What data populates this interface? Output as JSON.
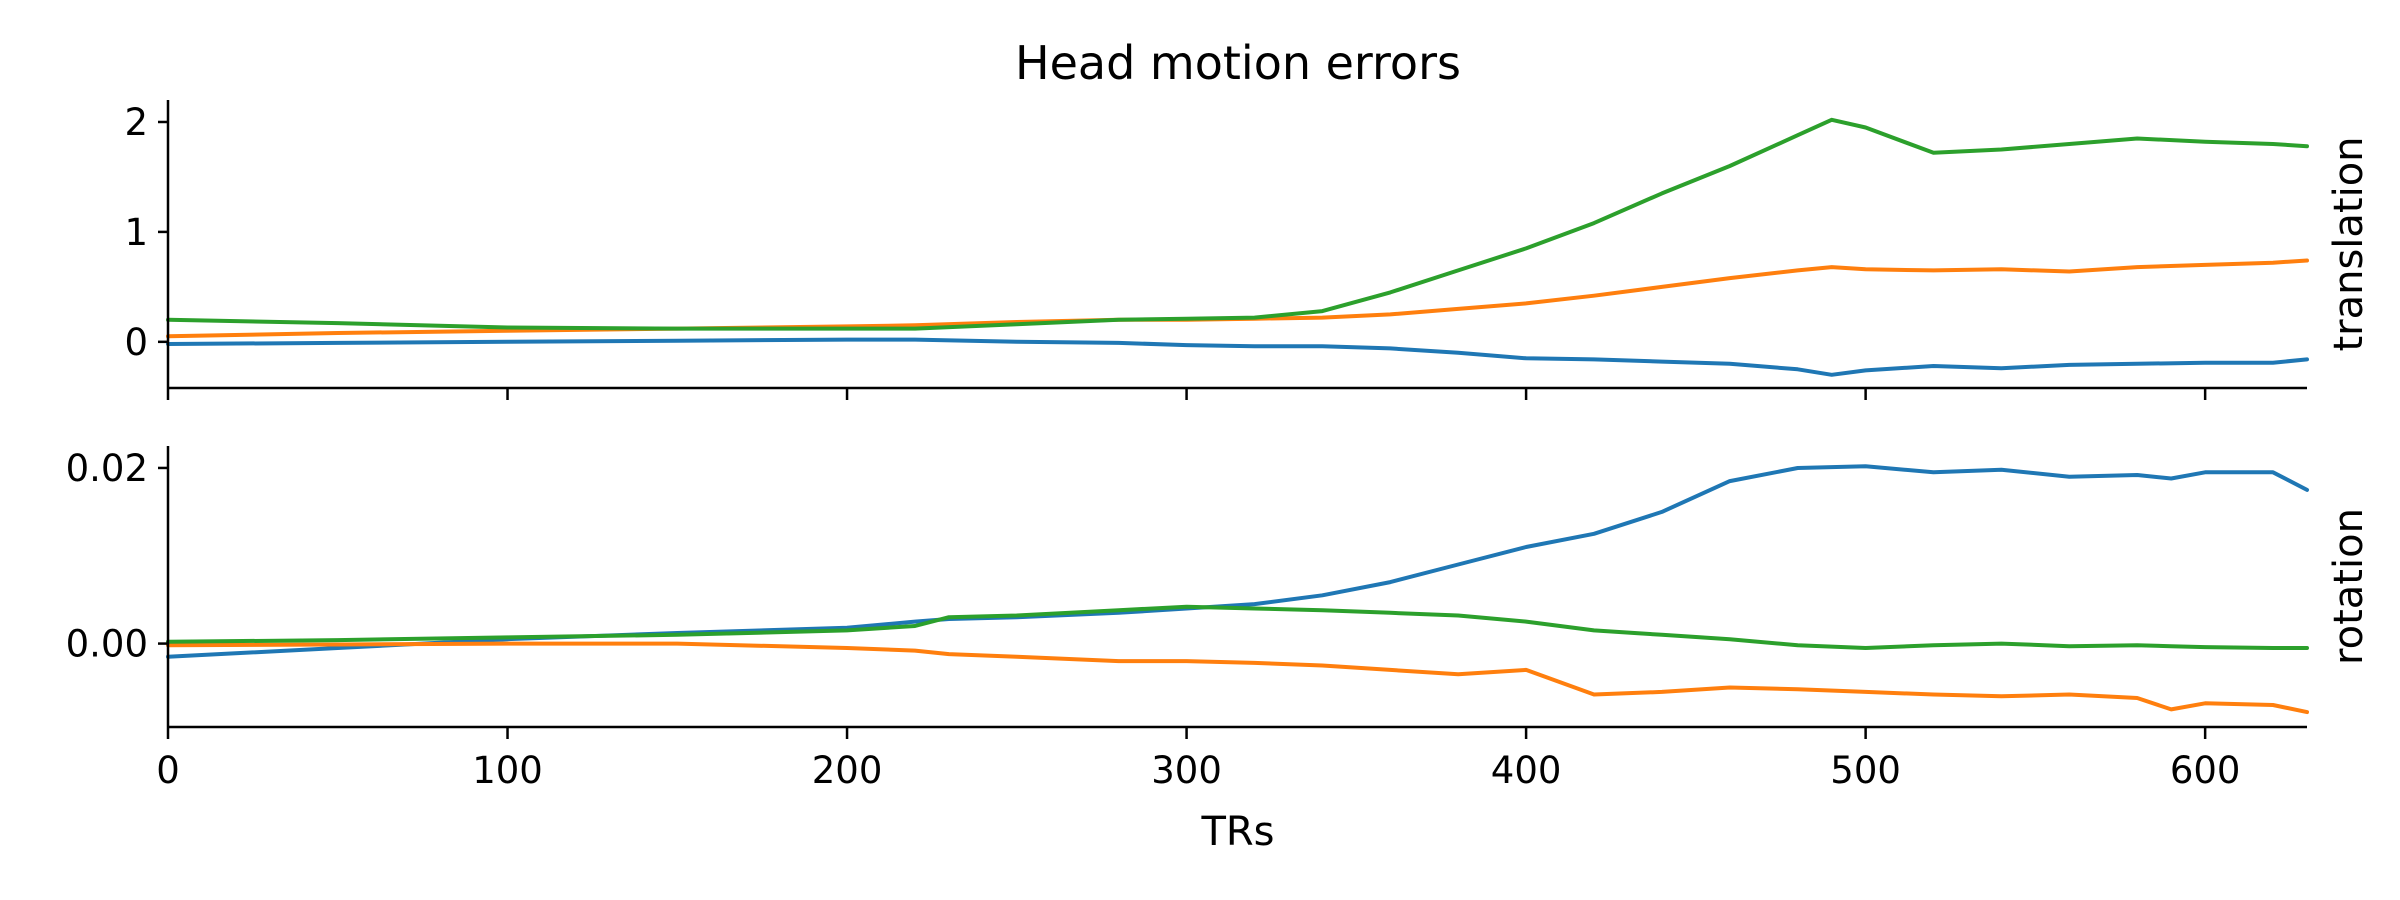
{
  "chart_data": {
    "type": "line",
    "title": "Head motion errors",
    "xlabel": "TRs",
    "xlim": [
      0,
      630
    ],
    "xticks": [
      0,
      100,
      200,
      300,
      400,
      500,
      600
    ],
    "colors": [
      "#1f77b4",
      "#ff7f0e",
      "#2ca02c"
    ],
    "subplots": [
      {
        "ylabel": "translation",
        "ylim": [
          -0.42,
          2.2
        ],
        "yticks": [
          0,
          1,
          2
        ],
        "ytick_labels": [
          "0",
          "1",
          "2"
        ],
        "x": [
          0,
          50,
          100,
          150,
          200,
          220,
          250,
          280,
          300,
          320,
          340,
          360,
          380,
          400,
          420,
          440,
          460,
          480,
          490,
          500,
          520,
          540,
          560,
          580,
          600,
          620,
          630
        ],
        "series": [
          {
            "color": "#1f77b4",
            "values": [
              -0.02,
              -0.01,
              0.0,
              0.01,
              0.02,
              0.02,
              0.0,
              -0.01,
              -0.03,
              -0.04,
              -0.04,
              -0.06,
              -0.1,
              -0.15,
              -0.16,
              -0.18,
              -0.2,
              -0.25,
              -0.3,
              -0.26,
              -0.22,
              -0.24,
              -0.21,
              -0.2,
              -0.19,
              -0.19,
              -0.16
            ]
          },
          {
            "color": "#ff7f0e",
            "values": [
              0.05,
              0.08,
              0.1,
              0.12,
              0.14,
              0.15,
              0.18,
              0.2,
              0.2,
              0.21,
              0.22,
              0.25,
              0.3,
              0.35,
              0.42,
              0.5,
              0.58,
              0.65,
              0.68,
              0.66,
              0.65,
              0.66,
              0.64,
              0.68,
              0.7,
              0.72,
              0.74
            ]
          },
          {
            "color": "#2ca02c",
            "values": [
              0.2,
              0.17,
              0.13,
              0.12,
              0.12,
              0.12,
              0.16,
              0.2,
              0.21,
              0.22,
              0.28,
              0.45,
              0.65,
              0.85,
              1.08,
              1.35,
              1.6,
              1.88,
              2.02,
              1.95,
              1.72,
              1.75,
              1.8,
              1.85,
              1.82,
              1.8,
              1.78
            ]
          }
        ]
      },
      {
        "ylabel": "rotation",
        "ylim": [
          -0.0095,
          0.0225
        ],
        "yticks": [
          0.0,
          0.02
        ],
        "ytick_labels": [
          "0.00",
          "0.02"
        ],
        "x": [
          0,
          50,
          100,
          150,
          200,
          220,
          230,
          250,
          280,
          300,
          320,
          340,
          360,
          380,
          400,
          420,
          440,
          460,
          480,
          500,
          520,
          540,
          560,
          580,
          590,
          600,
          620,
          630
        ],
        "series": [
          {
            "color": "#1f77b4",
            "values": [
              -0.0015,
              -0.0005,
              0.0005,
              0.0012,
              0.0018,
              0.0025,
              0.0028,
              0.003,
              0.0035,
              0.004,
              0.0045,
              0.0055,
              0.007,
              0.009,
              0.011,
              0.0125,
              0.015,
              0.0185,
              0.02,
              0.0202,
              0.0195,
              0.0198,
              0.019,
              0.0192,
              0.0188,
              0.0195,
              0.0195,
              0.0175
            ]
          },
          {
            "color": "#ff7f0e",
            "values": [
              -0.0002,
              -0.0001,
              0.0,
              0.0,
              -0.0005,
              -0.0008,
              -0.0012,
              -0.0015,
              -0.002,
              -0.002,
              -0.0022,
              -0.0025,
              -0.003,
              -0.0035,
              -0.003,
              -0.0058,
              -0.0055,
              -0.005,
              -0.0052,
              -0.0055,
              -0.0058,
              -0.006,
              -0.0058,
              -0.0062,
              -0.0075,
              -0.0068,
              -0.007,
              -0.0078
            ]
          },
          {
            "color": "#2ca02c",
            "values": [
              0.0002,
              0.0004,
              0.0007,
              0.001,
              0.0015,
              0.002,
              0.003,
              0.0032,
              0.0038,
              0.0042,
              0.004,
              0.0038,
              0.0035,
              0.0032,
              0.0025,
              0.0015,
              0.001,
              0.0005,
              -0.0002,
              -0.0005,
              -0.0002,
              0.0,
              -0.0003,
              -0.0002,
              -0.0003,
              -0.0004,
              -0.0005,
              -0.0005
            ]
          }
        ]
      }
    ]
  }
}
